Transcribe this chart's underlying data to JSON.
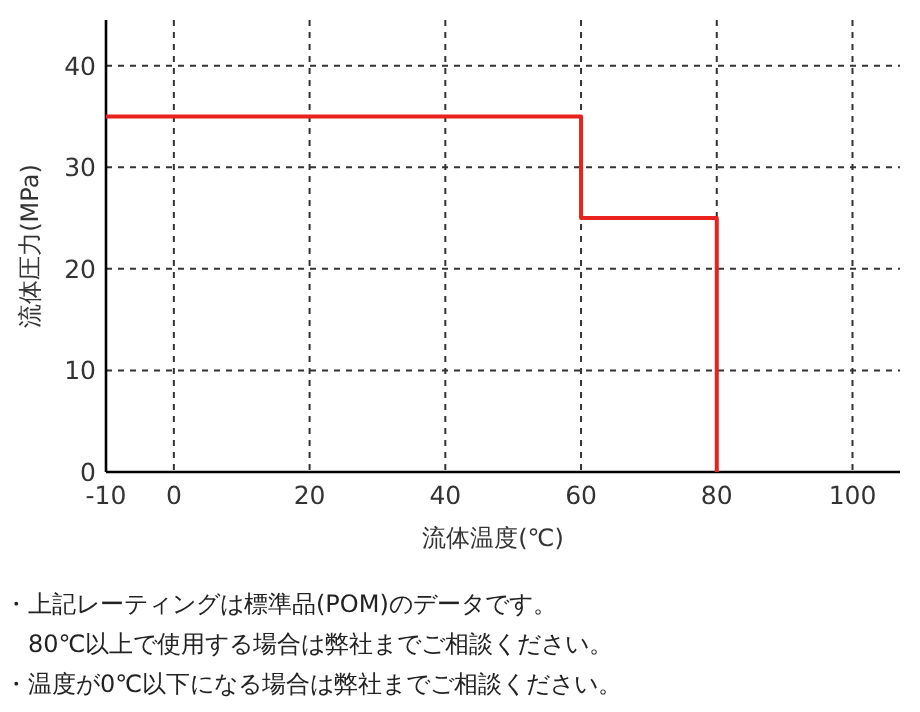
{
  "chart_data": {
    "type": "line",
    "xlabel": "流体温度(℃)",
    "ylabel": "流体圧力(MPa)",
    "xlim": [
      -10,
      107
    ],
    "ylim": [
      0,
      44.5
    ],
    "xticks": [
      -10,
      0,
      20,
      40,
      60,
      80,
      100
    ],
    "yticks": [
      0,
      10,
      20,
      30,
      40
    ],
    "grid": true,
    "line_style": "solid",
    "marker": "none",
    "series": [
      {
        "color": "#e8231f",
        "x": [
          -10,
          60,
          60,
          80,
          80
        ],
        "values": [
          35,
          35,
          25,
          25,
          0
        ]
      }
    ],
    "annotations": [
      "・上記レーティングは標準品(POM)のデータです。",
      "　80℃以上で使用する場合は弊社までご相談ください。",
      "・温度が0℃以下になる場合は弊社までご相談ください。"
    ]
  }
}
